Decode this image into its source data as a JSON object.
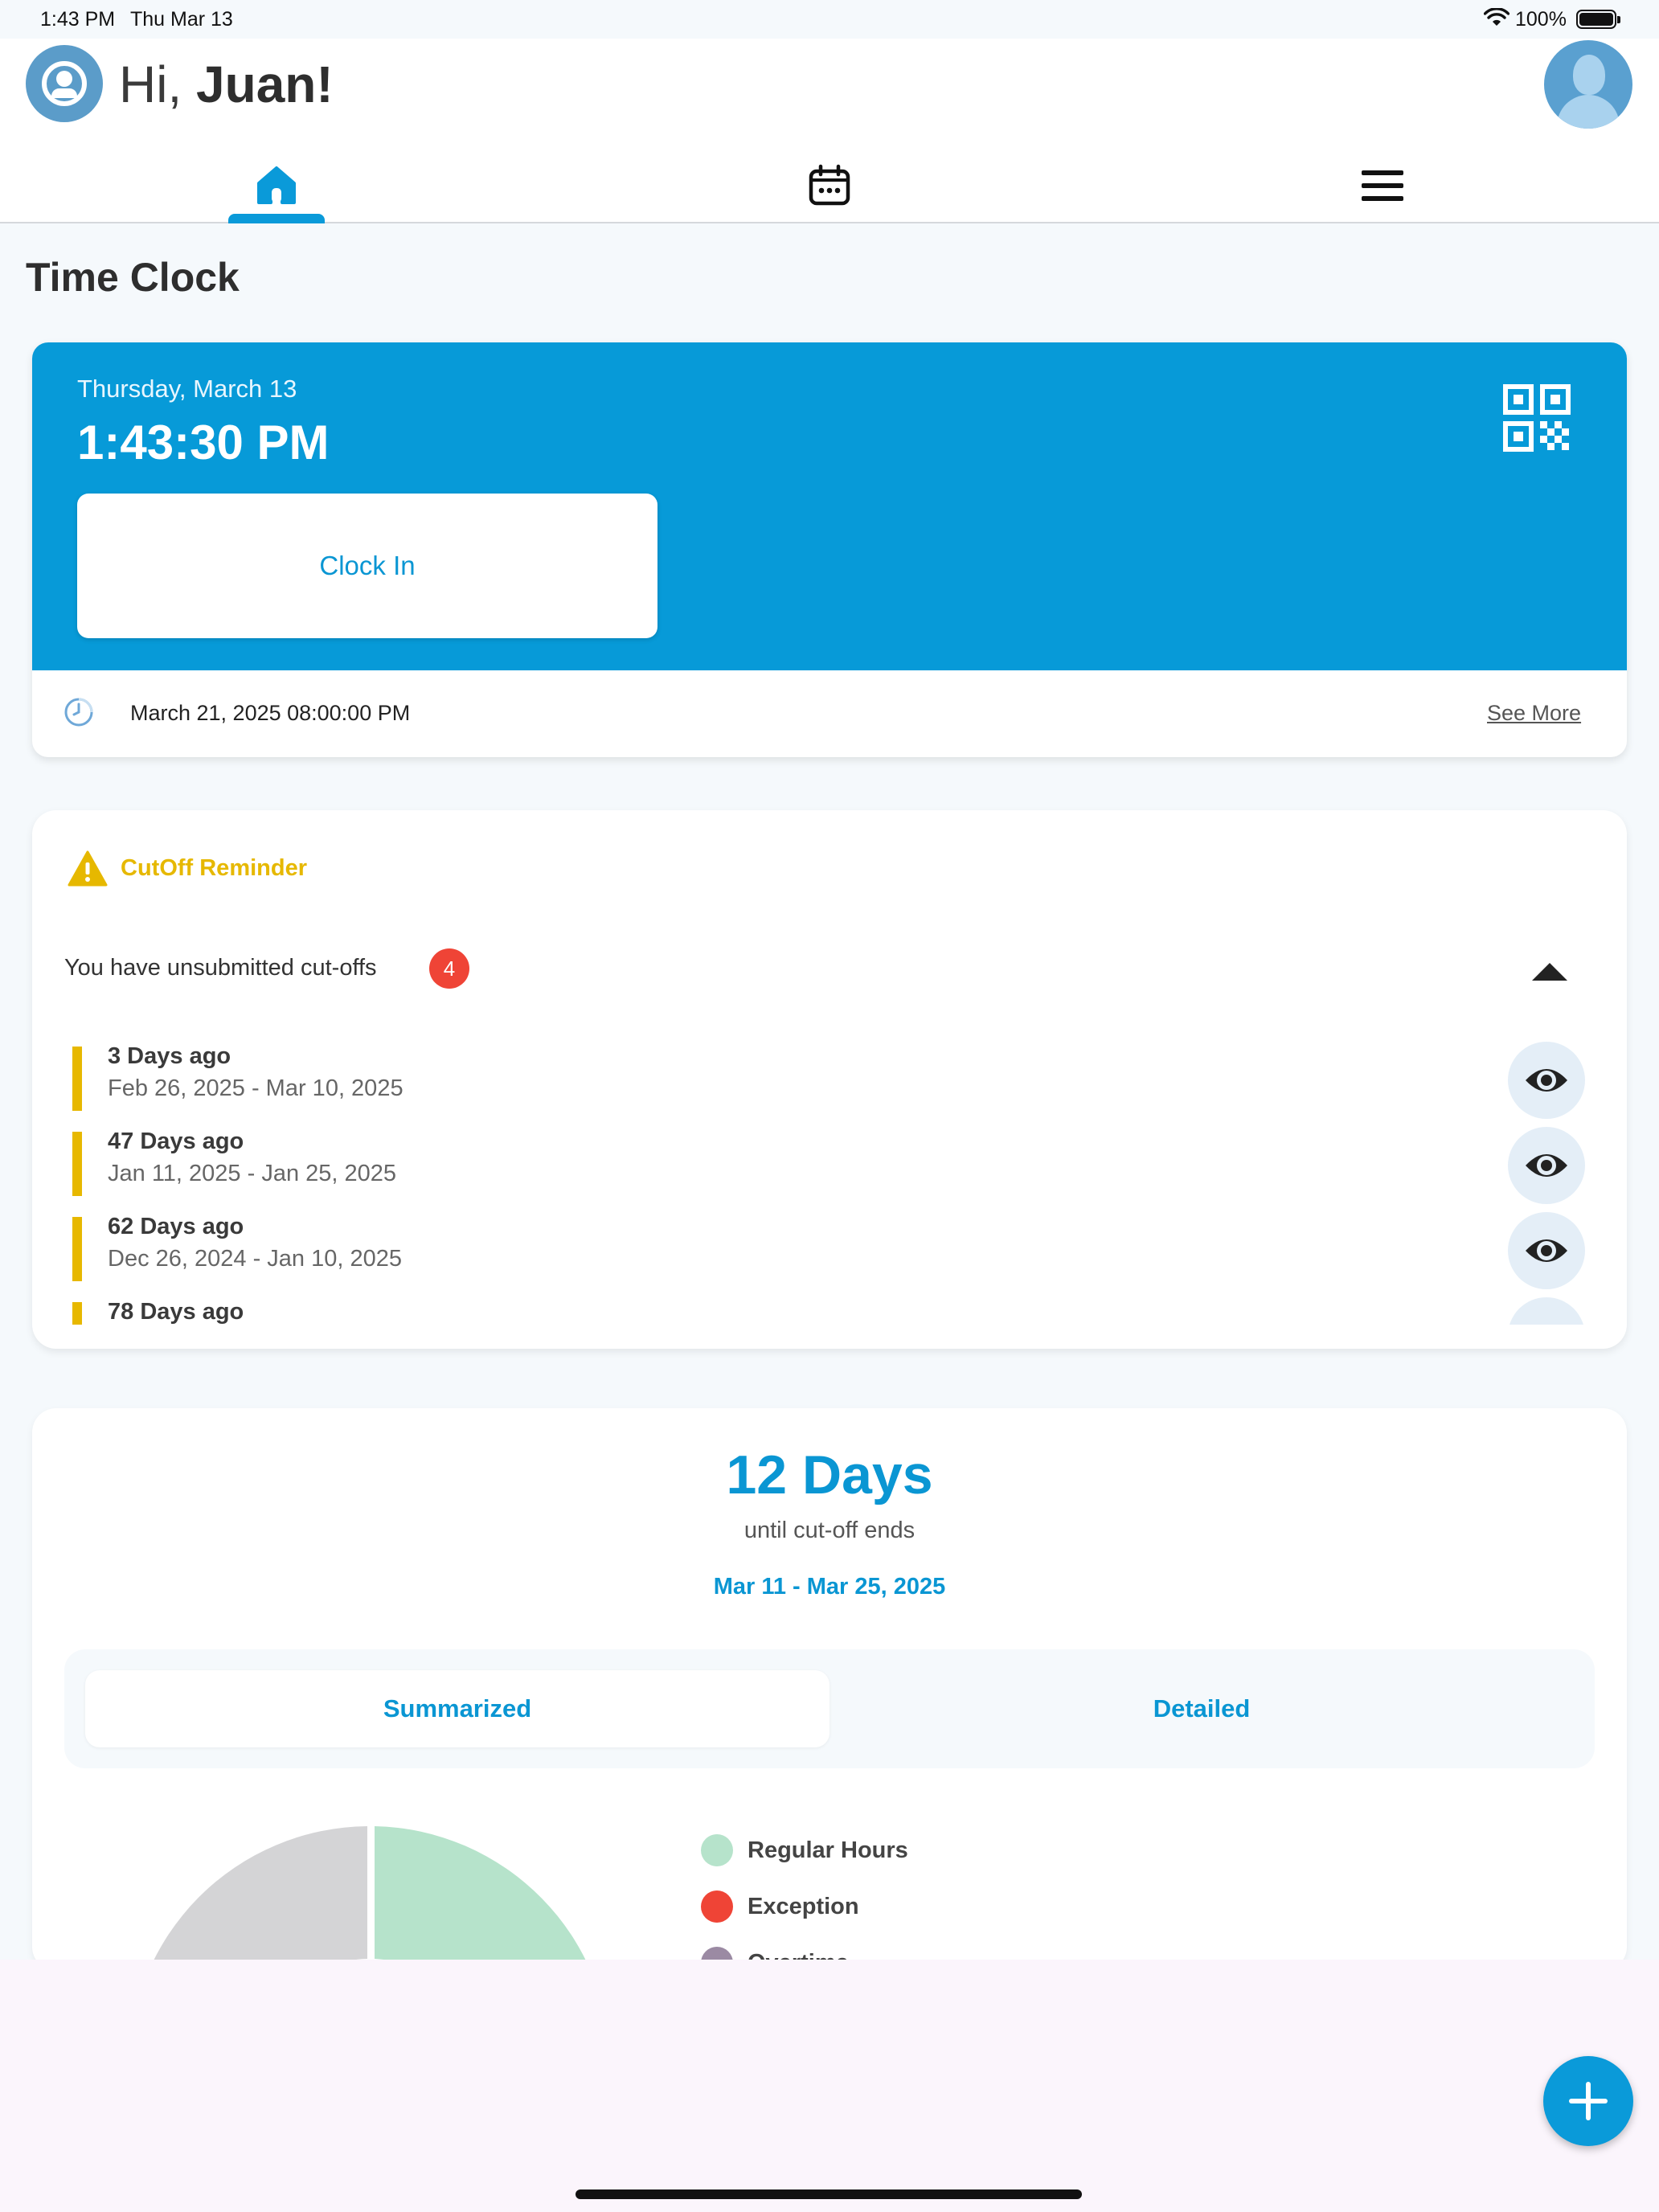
{
  "status_bar": {
    "time": "1:43 PM",
    "date": "Thu Mar 13",
    "battery": "100%",
    "icons": [
      "wifi-icon",
      "battery-icon"
    ]
  },
  "header": {
    "greeting_prefix": "Hi, ",
    "user_name": "Juan!",
    "logo_icon": "user-circle-icon",
    "avatar_icon": "avatar-icon"
  },
  "tabs": [
    {
      "name": "home",
      "icon": "home-icon",
      "active": true
    },
    {
      "name": "calendar",
      "icon": "calendar-icon",
      "active": false
    },
    {
      "name": "menu",
      "icon": "menu-icon",
      "active": false
    }
  ],
  "page_title": "Time Clock",
  "clock": {
    "date": "Thursday, March 13",
    "time": "1:43:30 PM",
    "clock_in_label": "Clock In",
    "qr_icon": "qr-code-icon",
    "next_event": "March 21, 2025 08:00:00 PM",
    "see_more": "See More"
  },
  "cutoff": {
    "title": "CutOff Reminder",
    "unsubmitted_text": "You have unsubmitted cut-offs",
    "count": "4",
    "items": [
      {
        "title": "3 Days ago",
        "range": "Feb 26, 2025 - Mar 10, 2025"
      },
      {
        "title": "47 Days ago",
        "range": "Jan 11, 2025 - Jan 25, 2025"
      },
      {
        "title": "62 Days ago",
        "range": "Dec 26, 2024 - Jan 10, 2025"
      },
      {
        "title": "78 Days ago",
        "range": ""
      }
    ]
  },
  "summary": {
    "days": "12 Days",
    "subtitle": "until cut-off ends",
    "range": "Mar 11 - Mar 25, 2025",
    "tabs": {
      "summarized": "Summarized",
      "detailed": "Detailed"
    },
    "legend": [
      {
        "label": "Regular Hours",
        "color": "#b6e3cb"
      },
      {
        "label": "Exception",
        "color": "#ef4436"
      },
      {
        "label": "Overtime",
        "color": "#9b8aa3"
      }
    ],
    "donut_colors": {
      "regular": "#b6e3cb",
      "remaining": "#d4d4d6"
    }
  },
  "colors": {
    "accent": "#0a9ad9",
    "warning": "#e6b800",
    "badge": "#ef4436"
  }
}
